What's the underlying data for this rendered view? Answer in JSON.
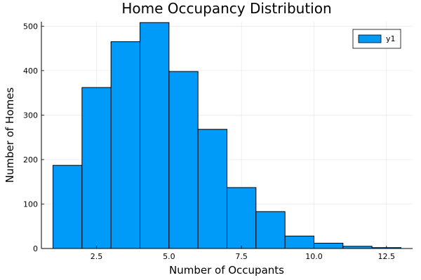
{
  "chart_data": {
    "type": "bar",
    "title": "Home Occupancy Distribution",
    "xlabel": "Number of Occupants",
    "ylabel": "Number of Homes",
    "xlim": [
      0.6,
      13.4
    ],
    "ylim": [
      0,
      510
    ],
    "xticks": [
      2.5,
      5.0,
      7.5,
      10.0,
      12.5
    ],
    "xtick_labels": [
      "2.5",
      "5.0",
      "7.5",
      "10.0",
      "12.5"
    ],
    "yticks": [
      0,
      100,
      200,
      300,
      400,
      500
    ],
    "ytick_labels": [
      "0",
      "100",
      "200",
      "300",
      "400",
      "500"
    ],
    "grid": true,
    "legend": {
      "position": "top-right",
      "entries": [
        "y1"
      ]
    },
    "bar_color": "#009af9",
    "series": [
      {
        "name": "y1",
        "bins": [
          {
            "x0": 1,
            "x1": 2,
            "value": 187
          },
          {
            "x0": 2,
            "x1": 3,
            "value": 362
          },
          {
            "x0": 3,
            "x1": 4,
            "value": 465
          },
          {
            "x0": 4,
            "x1": 5,
            "value": 508
          },
          {
            "x0": 5,
            "x1": 6,
            "value": 398
          },
          {
            "x0": 6,
            "x1": 7,
            "value": 268
          },
          {
            "x0": 7,
            "x1": 8,
            "value": 137
          },
          {
            "x0": 8,
            "x1": 9,
            "value": 83
          },
          {
            "x0": 9,
            "x1": 10,
            "value": 28
          },
          {
            "x0": 10,
            "x1": 11,
            "value": 12
          },
          {
            "x0": 11,
            "x1": 12,
            "value": 5
          },
          {
            "x0": 12,
            "x1": 13,
            "value": 2
          }
        ]
      }
    ]
  }
}
